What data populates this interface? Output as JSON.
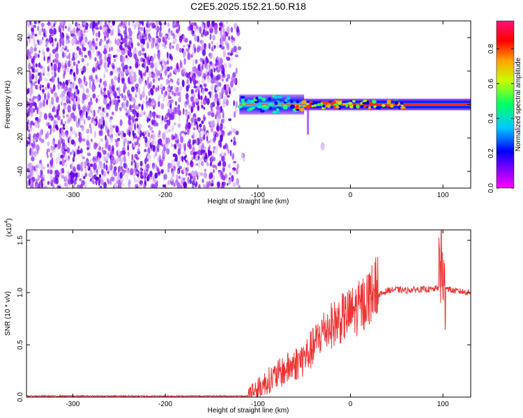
{
  "title": "C2E5.2025.152.21.50.R18",
  "chart_data": [
    {
      "type": "heatmap",
      "xlabel": "Height of straight line (km)",
      "ylabel": "Frequency (Hz)",
      "xlim": [
        -350,
        130
      ],
      "ylim": [
        -50,
        50
      ],
      "xticks": [
        -300,
        -200,
        -100,
        0,
        100
      ],
      "yticks": [
        -40,
        -20,
        0,
        20,
        40
      ],
      "colorbar": {
        "label": "Normalized spectral amplitude",
        "range": [
          0,
          0.96
        ],
        "ticks": [
          "0.0",
          "0.2",
          "0.4",
          "0.6",
          "0.8"
        ],
        "colormap": [
          "#ff00ff",
          "#7a00ff",
          "#0000ff",
          "#00c8ff",
          "#00ff66",
          "#c8ff00",
          "#ffa500",
          "#ff0000",
          "#ff1177"
        ]
      },
      "regions": [
        {
          "x_range": [
            -350,
            -120
          ],
          "description": "broadband noise",
          "amplitude": 0.05
        },
        {
          "x_range": [
            -120,
            -50
          ],
          "center_hz": 0,
          "band_hz": [
            -6,
            6
          ],
          "amplitude": 0.3
        },
        {
          "x_range": [
            -50,
            130
          ],
          "center_hz": 0,
          "band_hz": [
            -2,
            2
          ],
          "amplitude": 0.9
        }
      ]
    },
    {
      "type": "line",
      "xlabel": "Height of straight line (km)",
      "ylabel": "SNR (10 * v/v)",
      "exponent_label": "(x10",
      "exponent": "4",
      "xlim": [
        -350,
        130
      ],
      "ylim": [
        0,
        1.6
      ],
      "xticks": [
        -300,
        -200,
        -100,
        0,
        100
      ],
      "yticks": [
        "0.0",
        "0.5",
        "1.0",
        "1.5"
      ],
      "series": [
        {
          "color": "#ee3333",
          "x": [
            -350,
            -300,
            -250,
            -200,
            -150,
            -110,
            -100,
            -90,
            -80,
            -70,
            -60,
            -50,
            -40,
            -30,
            -20,
            -10,
            0,
            10,
            20,
            30,
            40,
            50,
            60,
            70,
            80,
            90,
            95,
            98,
            100,
            103,
            110,
            120,
            130
          ],
          "y": [
            0.01,
            0.01,
            0.01,
            0.01,
            0.01,
            0.01,
            0.03,
            0.1,
            0.15,
            0.2,
            0.25,
            0.3,
            0.4,
            0.55,
            0.6,
            0.65,
            0.7,
            0.75,
            0.85,
            0.97,
            1.02,
            1.03,
            1.02,
            1.03,
            1.03,
            1.03,
            1.05,
            1.3,
            1.02,
            1.05,
            1.02,
            1.01,
            1.0
          ]
        }
      ]
    }
  ]
}
